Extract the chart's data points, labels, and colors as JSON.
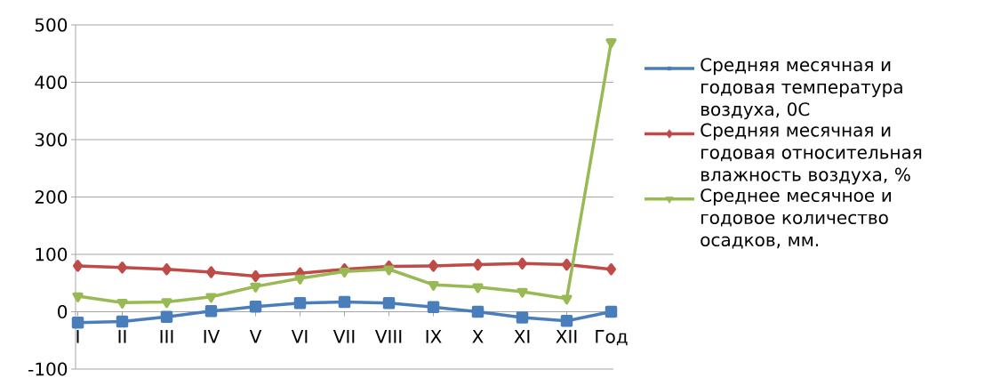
{
  "chart_data": {
    "type": "line",
    "categories": [
      "I",
      "II",
      "III",
      "IV",
      "V",
      "VI",
      "VII",
      "VIII",
      "IX",
      "X",
      "XI",
      "XII",
      "Год"
    ],
    "series": [
      {
        "name": "Средняя месячная и годовая температура воздуха, 0С",
        "color": "#4a7ebb",
        "marker": "square",
        "values": [
          -19,
          -17,
          -9,
          1,
          9,
          15,
          17,
          15,
          8,
          0,
          -10,
          -16,
          0
        ]
      },
      {
        "name": "Средняя месячная и годовая относительная влажность воздуха, %",
        "color": "#be4b48",
        "marker": "diamond",
        "values": [
          80,
          77,
          74,
          69,
          62,
          67,
          74,
          79,
          80,
          82,
          84,
          82,
          74
        ]
      },
      {
        "name": "Среднее месячное и годовое количество осадков, мм.",
        "color": "#98b954",
        "marker": "triangle",
        "values": [
          27,
          16,
          17,
          26,
          44,
          58,
          70,
          74,
          47,
          43,
          35,
          23,
          470
        ]
      }
    ],
    "ylim": [
      -100,
      500
    ],
    "yticks": [
      -100,
      0,
      100,
      200,
      300,
      400,
      500
    ],
    "grid": "y",
    "legend": "right"
  }
}
